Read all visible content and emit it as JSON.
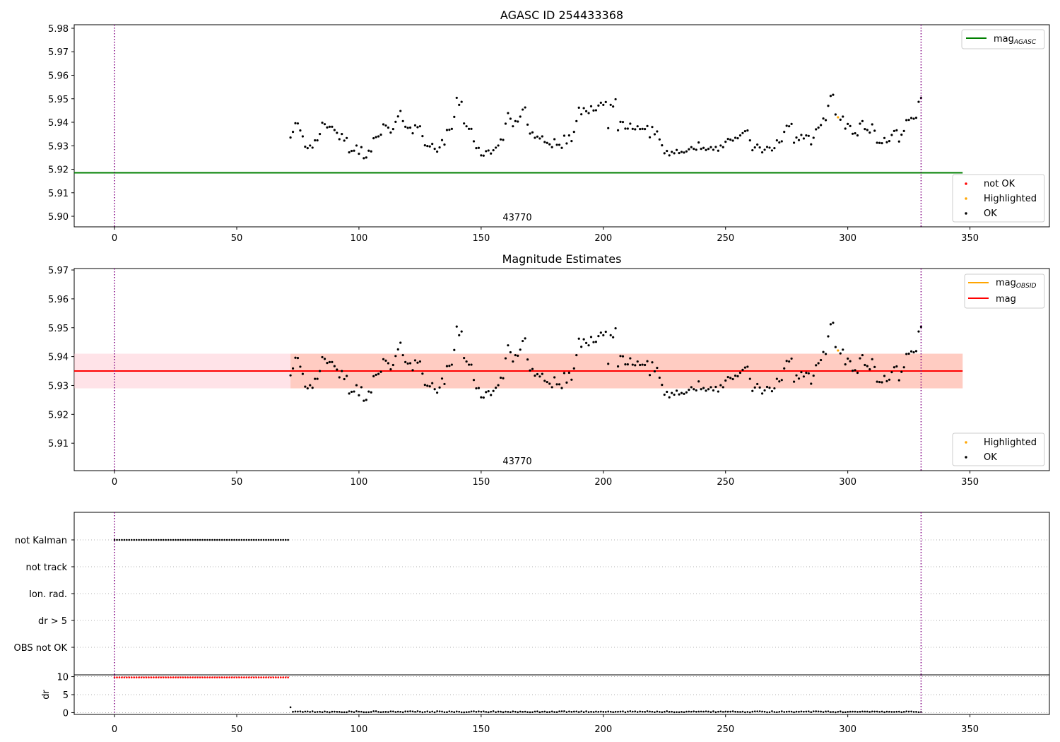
{
  "colors": {
    "ok": "#000000",
    "highlighted": "#ffa500",
    "not_ok": "#ff0000",
    "agasc_line": "#008000",
    "mag_line": "#ff0000",
    "obsid_line": "#ffa500",
    "band_outer": "#ffc0cb",
    "band_inner": "#ffa07a",
    "vline": "#800080",
    "grid": "#b0b0b0"
  },
  "chart_data": [
    {
      "type": "scatter",
      "title": "AGASC ID 254433368",
      "xlim": [
        -16.5,
        382.5
      ],
      "ylim": [
        5.8955,
        5.9815
      ],
      "xticks": [
        0,
        50,
        100,
        150,
        200,
        250,
        300,
        350
      ],
      "xtick_labels": [
        "0",
        "50",
        "100",
        "150",
        "200",
        "250",
        "300",
        "350"
      ],
      "yticks": [
        5.9,
        5.91,
        5.92,
        5.93,
        5.94,
        5.95,
        5.96,
        5.97,
        5.98
      ],
      "ytick_labels": [
        "5.90",
        "5.91",
        "5.92",
        "5.93",
        "5.94",
        "5.95",
        "5.96",
        "5.97",
        "5.98"
      ],
      "obsid_label": "43770",
      "obsid_label_x": 165,
      "vlines": [
        0,
        330
      ],
      "mag_agasc": 5.9185,
      "mag_agasc_x": [
        -16.5,
        347
      ],
      "legend_lines": [
        {
          "label": "mag",
          "sub": "AGASC"
        }
      ],
      "legend_points": [
        {
          "label": "not OK"
        },
        {
          "label": "Highlighted"
        },
        {
          "label": "OK"
        }
      ]
    },
    {
      "type": "scatter",
      "title": "Magnitude Estimates",
      "xlim": [
        -16.5,
        382.5
      ],
      "ylim": [
        5.9005,
        5.9705
      ],
      "xticks": [
        0,
        50,
        100,
        150,
        200,
        250,
        300,
        350
      ],
      "xtick_labels": [
        "0",
        "50",
        "100",
        "150",
        "200",
        "250",
        "300",
        "350"
      ],
      "yticks": [
        5.91,
        5.92,
        5.93,
        5.94,
        5.95,
        5.96,
        5.97
      ],
      "ytick_labels": [
        "5.91",
        "5.92",
        "5.93",
        "5.94",
        "5.95",
        "5.96",
        "5.97"
      ],
      "obsid_label": "43770",
      "obsid_label_x": 165,
      "vlines": [
        0,
        330
      ],
      "mag": 5.935,
      "band_outer": [
        5.929,
        5.941
      ],
      "band_inner": [
        5.929,
        5.941
      ],
      "band_x": [
        -16.5,
        347
      ],
      "legend_lines": [
        {
          "label": "mag",
          "sub": "OBSID"
        },
        {
          "label": "mag",
          "sub": ""
        }
      ],
      "legend_points": [
        {
          "label": "Highlighted"
        },
        {
          "label": "OK"
        }
      ]
    },
    {
      "type": "scatter",
      "title": "",
      "xlim": [
        -16.5,
        382.5
      ],
      "categories": [
        "not Kalman",
        "not track",
        "Ion. rad.",
        "dr > 5",
        "OBS not OK"
      ],
      "flag_not_kalman_x": [
        0,
        71
      ],
      "vlines": [
        0,
        330
      ]
    },
    {
      "type": "scatter",
      "title": "",
      "ylabel": "dr",
      "xlim": [
        -16.5,
        382.5
      ],
      "ylim": [
        -0.5,
        10.5
      ],
      "yticks": [
        0,
        5,
        10
      ],
      "ytick_labels": [
        "0",
        "5",
        "10"
      ],
      "xticks": [
        0,
        50,
        100,
        150,
        200,
        250,
        300,
        350
      ],
      "xtick_labels": [
        "0",
        "50",
        "100",
        "150",
        "200",
        "250",
        "300",
        "350"
      ],
      "dr_high_x": [
        0,
        71
      ],
      "dr_high_value": 9.8,
      "dr_spike": [
        72,
        1.5
      ],
      "vlines": [
        0,
        330
      ]
    }
  ],
  "mag_series": {
    "start_index": 72,
    "highlighted_index": 296,
    "values": [
      5.9335,
      5.9359,
      5.9396,
      5.9395,
      5.9365,
      5.934,
      5.9296,
      5.929,
      5.9301,
      5.9292,
      5.9323,
      5.9323,
      5.935,
      5.9398,
      5.9392,
      5.9378,
      5.9381,
      5.9381,
      5.9367,
      5.9355,
      5.9328,
      5.935,
      5.9322,
      5.9333,
      5.9272,
      5.9278,
      5.9279,
      5.9301,
      5.9266,
      5.9294,
      5.9247,
      5.925,
      5.9279,
      5.9276,
      5.9332,
      5.9337,
      5.934,
      5.9347,
      5.9391,
      5.9386,
      5.9377,
      5.9356,
      5.9371,
      5.9402,
      5.9425,
      5.9448,
      5.9405,
      5.9381,
      5.9376,
      5.9377,
      5.9353,
      5.9387,
      5.9379,
      5.9383,
      5.9341,
      5.9302,
      5.9299,
      5.9297,
      5.9308,
      5.9287,
      5.9275,
      5.9293,
      5.9324,
      5.9305,
      5.9367,
      5.9368,
      5.9372,
      5.9423,
      5.9504,
      5.9474,
      5.9487,
      5.9395,
      5.9383,
      5.9372,
      5.9372,
      5.9319,
      5.929,
      5.9291,
      5.9259,
      5.9258,
      5.9277,
      5.928,
      5.9267,
      5.9281,
      5.9292,
      5.9301,
      5.9327,
      5.9325,
      5.9394,
      5.9439,
      5.9415,
      5.9383,
      5.9405,
      5.9403,
      5.9424,
      5.9454,
      5.9463,
      5.939,
      5.9352,
      5.9357,
      5.9334,
      5.9339,
      5.9331,
      5.934,
      5.9316,
      5.9312,
      5.9306,
      5.9294,
      5.9328,
      5.9304,
      5.9304,
      5.9291,
      5.9343,
      5.931,
      5.9344,
      5.932,
      5.9359,
      5.9405,
      5.9462,
      5.9434,
      5.946,
      5.9447,
      5.9439,
      5.9468,
      5.945,
      5.9451,
      5.9471,
      5.9483,
      5.9474,
      5.9486,
      5.9375,
      5.9474,
      5.9467,
      5.9498,
      5.9366,
      5.9402,
      5.9401,
      5.9373,
      5.9373,
      5.9394,
      5.9372,
      5.937,
      5.9383,
      5.9371,
      5.9372,
      5.9371,
      5.9384,
      5.9336,
      5.938,
      5.9349,
      5.9361,
      5.9327,
      5.9302,
      5.9268,
      5.9278,
      5.9259,
      5.9274,
      5.9268,
      5.9282,
      5.9269,
      5.9274,
      5.9271,
      5.9276,
      5.9285,
      5.9294,
      5.9287,
      5.9283,
      5.9314,
      5.9287,
      5.9291,
      5.9282,
      5.9287,
      5.9294,
      5.9283,
      5.9295,
      5.9279,
      5.9301,
      5.9294,
      5.9317,
      5.9329,
      5.9326,
      5.9322,
      5.9334,
      5.9332,
      5.9344,
      5.9354,
      5.9362,
      5.9365,
      5.9323,
      5.9281,
      5.9293,
      5.9305,
      5.9293,
      5.9272,
      5.9283,
      5.9295,
      5.9292,
      5.928,
      5.929,
      5.9323,
      5.9314,
      5.9319,
      5.9359,
      5.9385,
      5.9383,
      5.9393,
      5.9313,
      5.9335,
      5.9324,
      5.9346,
      5.9331,
      5.9344,
      5.9342,
      5.9306,
      5.9334,
      5.937,
      5.9377,
      5.9388,
      5.9416,
      5.9409,
      5.947,
      5.9512,
      5.9517,
      5.9433,
      5.9421,
      5.9411,
      5.9424,
      5.9373,
      5.9393,
      5.9384,
      5.9351,
      5.9353,
      5.9344,
      5.9394,
      5.9405,
      5.9371,
      5.9367,
      5.9356,
      5.9391,
      5.9364,
      5.9313,
      5.9312,
      5.9311,
      5.9333,
      5.9315,
      5.932,
      5.9346,
      5.9363,
      5.9366,
      5.9318,
      5.9347,
      5.9363,
      5.9409,
      5.941,
      5.9418,
      5.9415,
      5.9419,
      5.9487,
      5.9503
    ]
  },
  "dr_series": {
    "start_index": 73,
    "values": [
      0.24,
      0.32,
      0.3,
      0.36,
      0.19,
      0.3,
      0.33,
      0.2,
      0.37,
      0.14,
      0.21,
      0.25,
      0.14,
      0.32,
      0.21,
      0.1,
      0.27,
      0.28,
      0.23,
      0.22,
      0.13,
      0.13,
      0.12,
      0.38,
      0.28,
      0.14,
      0.39,
      0.28,
      0.26,
      0.12,
      0.12,
      0.13,
      0.19,
      0.39,
      0.39,
      0.21,
      0.14,
      0.19,
      0.22,
      0.17,
      0.34,
      0.33,
      0.18,
      0.27,
      0.23,
      0.11,
      0.34,
      0.32,
      0.39,
      0.33,
      0.22,
      0.39,
      0.27,
      0.11,
      0.2,
      0.35,
      0.16,
      0.31,
      0.11,
      0.39,
      0.36,
      0.31,
      0.13,
      0.15,
      0.36,
      0.28,
      0.15,
      0.33,
      0.26,
      0.11,
      0.1,
      0.16,
      0.19,
      0.33,
      0.38,
      0.22,
      0.34,
      0.26,
      0.36,
      0.2,
      0.12,
      0.26,
      0.39,
      0.13,
      0.29,
      0.27,
      0.12,
      0.28,
      0.22,
      0.14,
      0.34,
      0.26,
      0.12,
      0.29,
      0.22,
      0.28,
      0.16,
      0.12,
      0.14,
      0.31,
      0.34,
      0.12,
      0.25,
      0.29,
      0.15,
      0.17,
      0.33,
      0.17,
      0.16,
      0.34,
      0.37,
      0.39,
      0.16,
      0.33,
      0.22,
      0.29,
      0.33,
      0.17,
      0.35,
      0.15,
      0.37,
      0.16,
      0.24,
      0.18,
      0.29,
      0.23,
      0.3,
      0.22,
      0.2,
      0.32,
      0.25,
      0.15,
      0.24,
      0.25,
      0.29,
      0.36,
      0.11,
      0.29,
      0.39,
      0.28,
      0.34,
      0.18,
      0.32,
      0.25,
      0.22,
      0.39,
      0.29,
      0.26,
      0.14,
      0.32,
      0.21,
      0.13,
      0.24,
      0.39,
      0.22,
      0.26,
      0.12,
      0.16,
      0.13,
      0.22,
      0.14,
      0.28,
      0.3,
      0.26,
      0.36,
      0.24,
      0.29,
      0.31,
      0.28,
      0.36,
      0.29,
      0.15,
      0.37,
      0.12,
      0.25,
      0.33,
      0.21,
      0.29,
      0.27,
      0.28,
      0.38,
      0.24,
      0.22,
      0.19,
      0.28,
      0.11,
      0.21,
      0.1,
      0.27,
      0.36,
      0.35,
      0.38,
      0.3,
      0.25,
      0.11,
      0.13,
      0.39,
      0.18,
      0.14,
      0.23,
      0.37,
      0.18,
      0.24,
      0.31,
      0.28,
      0.12,
      0.27,
      0.24,
      0.33,
      0.25,
      0.31,
      0.34,
      0.15,
      0.36,
      0.37,
      0.33,
      0.29,
      0.16,
      0.32,
      0.36,
      0.17,
      0.21,
      0.11,
      0.23,
      0.34,
      0.12,
      0.14,
      0.22,
      0.27,
      0.28,
      0.28,
      0.21,
      0.24,
      0.32,
      0.29,
      0.29,
      0.19,
      0.33,
      0.3,
      0.31,
      0.21,
      0.3,
      0.13,
      0.27,
      0.24,
      0.2,
      0.19,
      0.24,
      0.28,
      0.13,
      0.22,
      0.34,
      0.3,
      0.33,
      0.2,
      0.22,
      0.14,
      0.17
    ]
  }
}
